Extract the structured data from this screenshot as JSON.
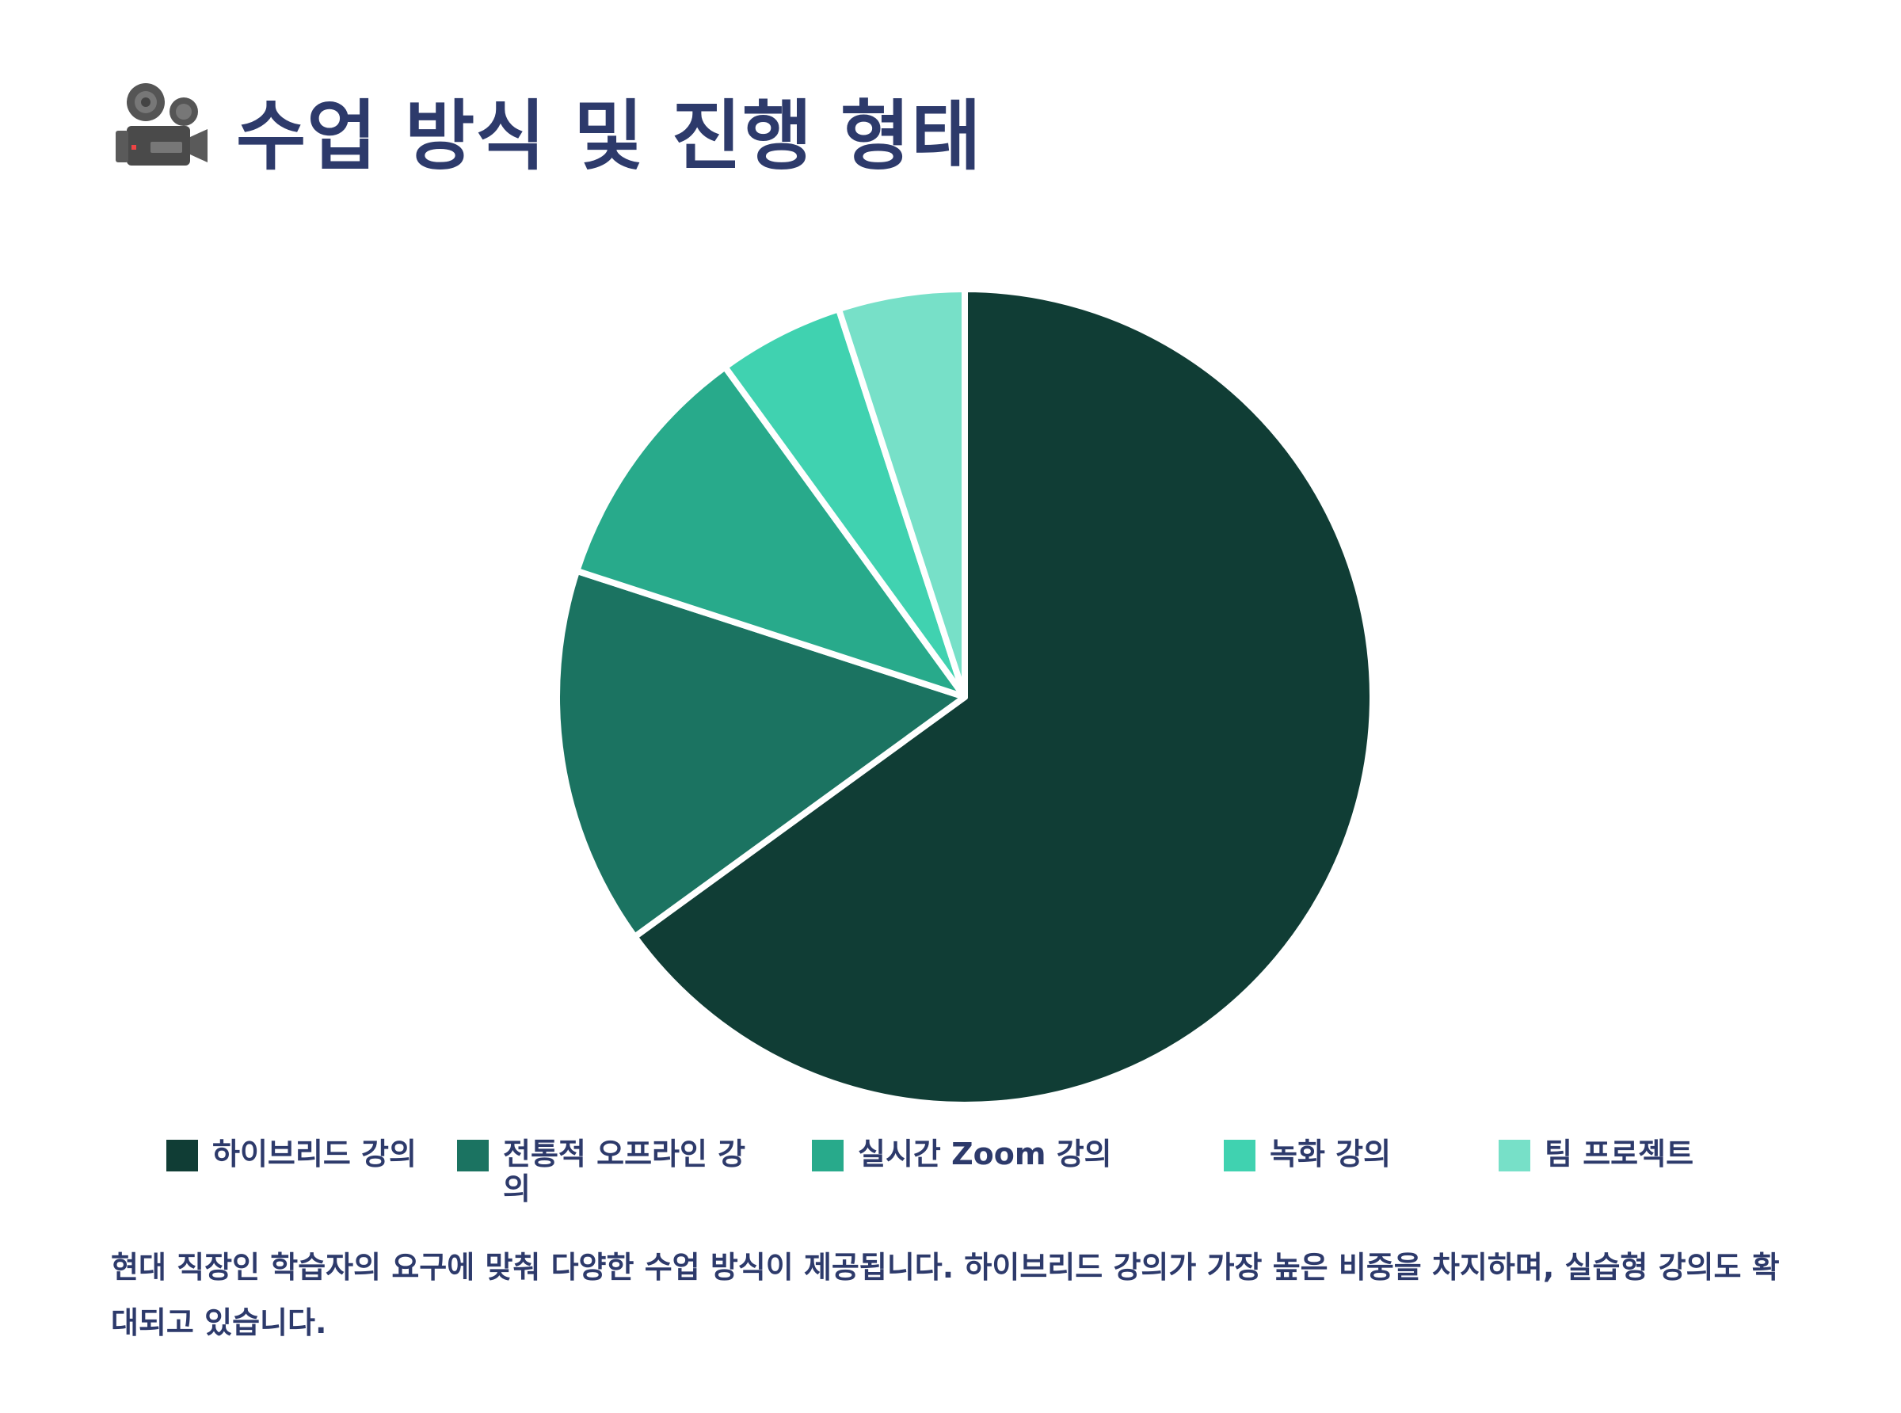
{
  "page": {
    "title": "수업 방식 및 진행 형태",
    "title_icon": "movie-camera-icon",
    "description": "현대 직장인 학습자의 요구에 맞춰 다양한 수업 방식이 제공됩니다. 하이브리드 강의가 가장 높은 비중을 차지하며, 실습형 강의도 확대되고 있습니다."
  },
  "colors": {
    "title": "#2d3a6b",
    "slice_border": "#ffffff"
  },
  "chart_data": {
    "type": "pie",
    "categories": [
      "하이브리드 강의",
      "전통적 오프라인 강의",
      "실시간 Zoom 강의",
      "녹화 강의",
      "팀 프로젝트"
    ],
    "values": [
      65,
      15,
      10,
      5,
      5
    ],
    "colors": [
      "#103d35",
      "#1b7361",
      "#28aa8b",
      "#40d2b0",
      "#77e0c8"
    ],
    "legend_position": "bottom",
    "start_angle": "top",
    "direction": "clockwise"
  }
}
